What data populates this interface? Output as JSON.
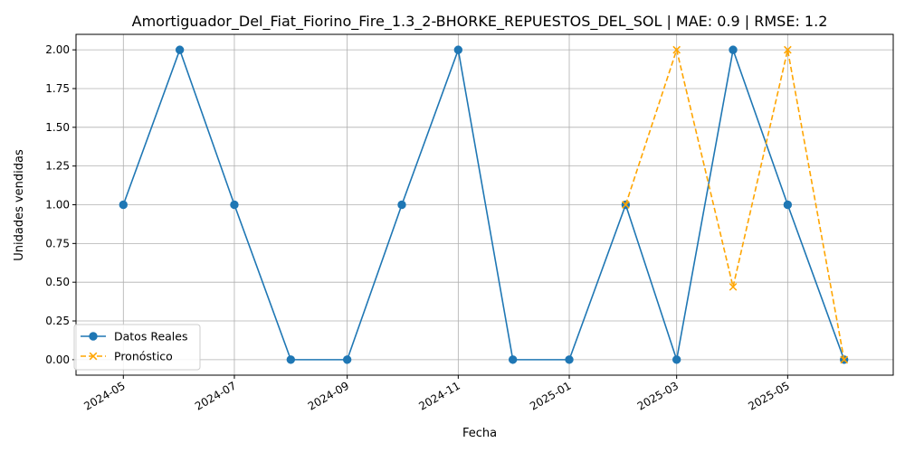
{
  "chart_data": {
    "type": "line",
    "title": "Amortiguador_Del_Fiat_Fiorino_Fire_1.3_2-BHORKE_REPUESTOS_DEL_SOL | MAE: 0.9 | RMSE: 1.2",
    "xlabel": "Fecha",
    "ylabel": "Unidades vendidas",
    "x_tick_labels": [
      "2024-05",
      "2024-07",
      "2024-09",
      "2024-11",
      "2025-01",
      "2025-03",
      "2025-05"
    ],
    "y_tick_labels": [
      "0.00",
      "0.25",
      "0.50",
      "0.75",
      "1.00",
      "1.25",
      "1.50",
      "1.75",
      "2.00"
    ],
    "ylim": [
      -0.1,
      2.1
    ],
    "grid": true,
    "legend_position": "lower left",
    "series": [
      {
        "name": "Datos Reales",
        "color": "#1f77b4",
        "marker": "circle",
        "linestyle": "solid",
        "x": [
          "2024-05-01",
          "2024-06-01",
          "2024-07-01",
          "2024-08-01",
          "2024-09-01",
          "2024-10-01",
          "2024-11-01",
          "2024-12-01",
          "2025-01-01",
          "2025-02-01",
          "2025-03-01",
          "2025-04-01",
          "2025-05-01",
          "2025-06-01"
        ],
        "values": [
          1,
          2,
          1,
          0,
          0,
          1,
          2,
          0,
          0,
          1,
          0,
          2,
          1,
          0
        ]
      },
      {
        "name": "Pronóstico",
        "color": "#ffa500",
        "marker": "x",
        "linestyle": "dashed",
        "x": [
          "2025-02-01",
          "2025-03-01",
          "2025-04-01",
          "2025-05-01",
          "2025-06-01"
        ],
        "values": [
          1.0,
          2.0,
          0.47,
          2.0,
          0.0
        ]
      }
    ]
  }
}
